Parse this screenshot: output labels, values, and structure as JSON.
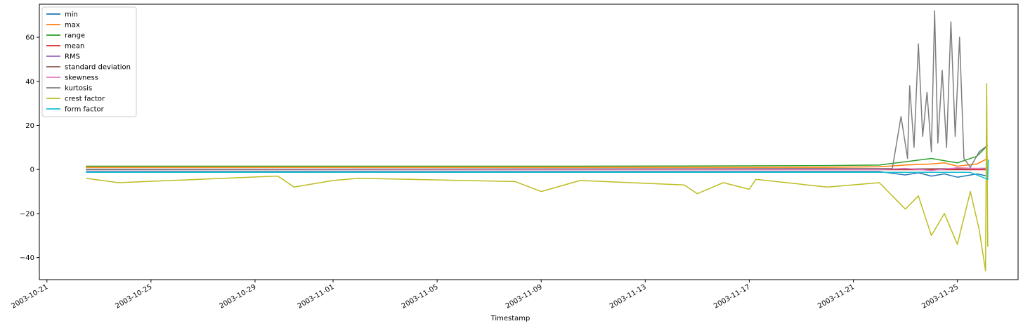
{
  "chart_data": {
    "type": "line",
    "xlabel": "Timestamp",
    "ylabel": "",
    "x_type": "date",
    "xlim": [
      "2003-10-20T17:00",
      "2003-11-27T08:00"
    ],
    "ylim": [
      -50,
      75
    ],
    "x_ticks": [
      "2003-10-21",
      "2003-10-25",
      "2003-10-29",
      "2003-11-01",
      "2003-11-05",
      "2003-11-09",
      "2003-11-13",
      "2003-11-17",
      "2003-11-21",
      "2003-11-25"
    ],
    "y_ticks": [
      -40,
      -20,
      0,
      20,
      40,
      60
    ],
    "grid": false,
    "legend_placement": "top-left",
    "series": [
      {
        "name": "min",
        "color": "#1f77b4",
        "points": [
          [
            "2003-10-22T12:00",
            -1.0
          ],
          [
            "2003-10-23T18:00",
            -1.0
          ],
          [
            "2003-10-29T21:00",
            -1.0
          ],
          [
            "2003-11-02T00:00",
            -1.0
          ],
          [
            "2003-11-08T00:00",
            -1.0
          ],
          [
            "2003-11-10T12:00",
            -1.0
          ],
          [
            "2003-11-14T12:00",
            -1.0
          ],
          [
            "2003-11-20T00:00",
            -1.0
          ],
          [
            "2003-11-22T00:00",
            -1.0
          ],
          [
            "2003-11-23T00:00",
            -2.5
          ],
          [
            "2003-11-23T12:00",
            -1.5
          ],
          [
            "2003-11-24T00:00",
            -3.0
          ],
          [
            "2003-11-24T12:00",
            -2.0
          ],
          [
            "2003-11-25T00:00",
            -3.5
          ],
          [
            "2003-11-25T18:00",
            -2.0
          ],
          [
            "2003-11-26T04:00",
            -3.0
          ]
        ]
      },
      {
        "name": "max",
        "color": "#ff7f0e",
        "points": [
          [
            "2003-10-22T12:00",
            1.0
          ],
          [
            "2003-10-23T18:00",
            1.0
          ],
          [
            "2003-10-29T21:00",
            1.0
          ],
          [
            "2003-11-02T00:00",
            1.0
          ],
          [
            "2003-11-08T00:00",
            1.0
          ],
          [
            "2003-11-10T12:00",
            1.0
          ],
          [
            "2003-11-14T12:00",
            1.0
          ],
          [
            "2003-11-20T00:00",
            1.0
          ],
          [
            "2003-11-22T00:00",
            1.2
          ],
          [
            "2003-11-23T00:00",
            2.0
          ],
          [
            "2003-11-24T00:00",
            2.5
          ],
          [
            "2003-11-24T12:00",
            3.0
          ],
          [
            "2003-11-25T00:00",
            1.5
          ],
          [
            "2003-11-25T18:00",
            2.5
          ],
          [
            "2003-11-26T04:00",
            5.0
          ]
        ]
      },
      {
        "name": "range",
        "color": "#2ca02c",
        "points": [
          [
            "2003-10-22T12:00",
            1.5
          ],
          [
            "2003-10-23T18:00",
            1.5
          ],
          [
            "2003-10-29T21:00",
            1.5
          ],
          [
            "2003-11-02T00:00",
            1.5
          ],
          [
            "2003-11-08T00:00",
            1.5
          ],
          [
            "2003-11-10T12:00",
            1.5
          ],
          [
            "2003-11-14T12:00",
            1.6
          ],
          [
            "2003-11-20T00:00",
            1.8
          ],
          [
            "2003-11-22T00:00",
            2.0
          ],
          [
            "2003-11-23T00:00",
            3.5
          ],
          [
            "2003-11-24T00:00",
            5.0
          ],
          [
            "2003-11-24T12:00",
            4.0
          ],
          [
            "2003-11-25T00:00",
            3.0
          ],
          [
            "2003-11-25T18:00",
            6.0
          ],
          [
            "2003-11-26T04:00",
            11.0
          ]
        ]
      },
      {
        "name": "mean",
        "color": "#d62728",
        "points": [
          [
            "2003-10-22T12:00",
            -0.1
          ],
          [
            "2003-11-26T04:00",
            -0.1
          ]
        ]
      },
      {
        "name": "RMS",
        "color": "#9467bd",
        "points": [
          [
            "2003-10-22T12:00",
            0.1
          ],
          [
            "2003-11-22T00:00",
            0.1
          ],
          [
            "2003-11-24T00:00",
            0.3
          ],
          [
            "2003-11-26T04:00",
            0.5
          ]
        ]
      },
      {
        "name": "standard deviation",
        "color": "#8c564b",
        "points": [
          [
            "2003-10-22T12:00",
            0.1
          ],
          [
            "2003-11-22T00:00",
            0.1
          ],
          [
            "2003-11-24T00:00",
            0.3
          ],
          [
            "2003-11-26T04:00",
            0.5
          ]
        ]
      },
      {
        "name": "skewness",
        "color": "#e377c2",
        "points": [
          [
            "2003-10-22T12:00",
            0.0
          ],
          [
            "2003-11-22T00:00",
            0.0
          ],
          [
            "2003-11-23T00:00",
            0.5
          ],
          [
            "2003-11-24T00:00",
            -0.5
          ],
          [
            "2003-11-25T00:00",
            0.8
          ],
          [
            "2003-11-26T04:00",
            0.3
          ]
        ]
      },
      {
        "name": "kurtosis",
        "color": "#7f7f7f",
        "points": [
          [
            "2003-10-22T12:00",
            0.0
          ],
          [
            "2003-11-22T12:00",
            0.5
          ],
          [
            "2003-11-22T20:00",
            24.0
          ],
          [
            "2003-11-23T02:00",
            5.0
          ],
          [
            "2003-11-23T04:00",
            38.0
          ],
          [
            "2003-11-23T08:00",
            10.0
          ],
          [
            "2003-11-23T12:00",
            57.0
          ],
          [
            "2003-11-23T16:00",
            15.0
          ],
          [
            "2003-11-23T20:00",
            35.0
          ],
          [
            "2003-11-24T00:00",
            8.0
          ],
          [
            "2003-11-24T03:00",
            72.0
          ],
          [
            "2003-11-24T06:00",
            12.0
          ],
          [
            "2003-11-24T10:00",
            45.0
          ],
          [
            "2003-11-24T14:00",
            10.0
          ],
          [
            "2003-11-24T18:00",
            67.0
          ],
          [
            "2003-11-24T22:00",
            15.0
          ],
          [
            "2003-11-25T02:00",
            60.0
          ],
          [
            "2003-11-25T06:00",
            5.0
          ],
          [
            "2003-11-25T12:00",
            1.0
          ],
          [
            "2003-11-25T20:00",
            8.0
          ],
          [
            "2003-11-26T04:00",
            11.0
          ]
        ]
      },
      {
        "name": "crest factor",
        "color": "#bcbd22",
        "points": [
          [
            "2003-10-22T12:00",
            -4.0
          ],
          [
            "2003-10-23T18:00",
            -6.0
          ],
          [
            "2003-10-29T21:00",
            -3.0
          ],
          [
            "2003-10-30T12:00",
            -8.0
          ],
          [
            "2003-11-01T00:00",
            -5.0
          ],
          [
            "2003-11-02T00:00",
            -4.0
          ],
          [
            "2003-11-08T00:00",
            -5.5
          ],
          [
            "2003-11-09T00:00",
            -10.0
          ],
          [
            "2003-11-10T12:00",
            -5.0
          ],
          [
            "2003-11-14T12:00",
            -7.0
          ],
          [
            "2003-11-15T00:00",
            -11.0
          ],
          [
            "2003-11-16T00:00",
            -6.0
          ],
          [
            "2003-11-17T00:00",
            -9.0
          ],
          [
            "2003-11-17T06:00",
            -4.5
          ],
          [
            "2003-11-20T00:00",
            -8.0
          ],
          [
            "2003-11-22T00:00",
            -6.0
          ],
          [
            "2003-11-23T00:00",
            -18.0
          ],
          [
            "2003-11-23T12:00",
            -12.0
          ],
          [
            "2003-11-24T00:00",
            -30.0
          ],
          [
            "2003-11-24T12:00",
            -20.0
          ],
          [
            "2003-11-25T00:00",
            -34.0
          ],
          [
            "2003-11-25T12:00",
            -10.0
          ],
          [
            "2003-11-25T20:00",
            -27.0
          ],
          [
            "2003-11-26T02:00",
            -46.0
          ],
          [
            "2003-11-26T03:00",
            39.0
          ],
          [
            "2003-11-26T04:00",
            -35.0
          ]
        ]
      },
      {
        "name": "form factor",
        "color": "#17becf",
        "points": [
          [
            "2003-10-22T12:00",
            -1.3
          ],
          [
            "2003-11-25T12:00",
            -1.3
          ],
          [
            "2003-11-26T04:00",
            -4.5
          ],
          [
            "2003-11-26T04:30",
            4.5
          ]
        ]
      }
    ]
  }
}
